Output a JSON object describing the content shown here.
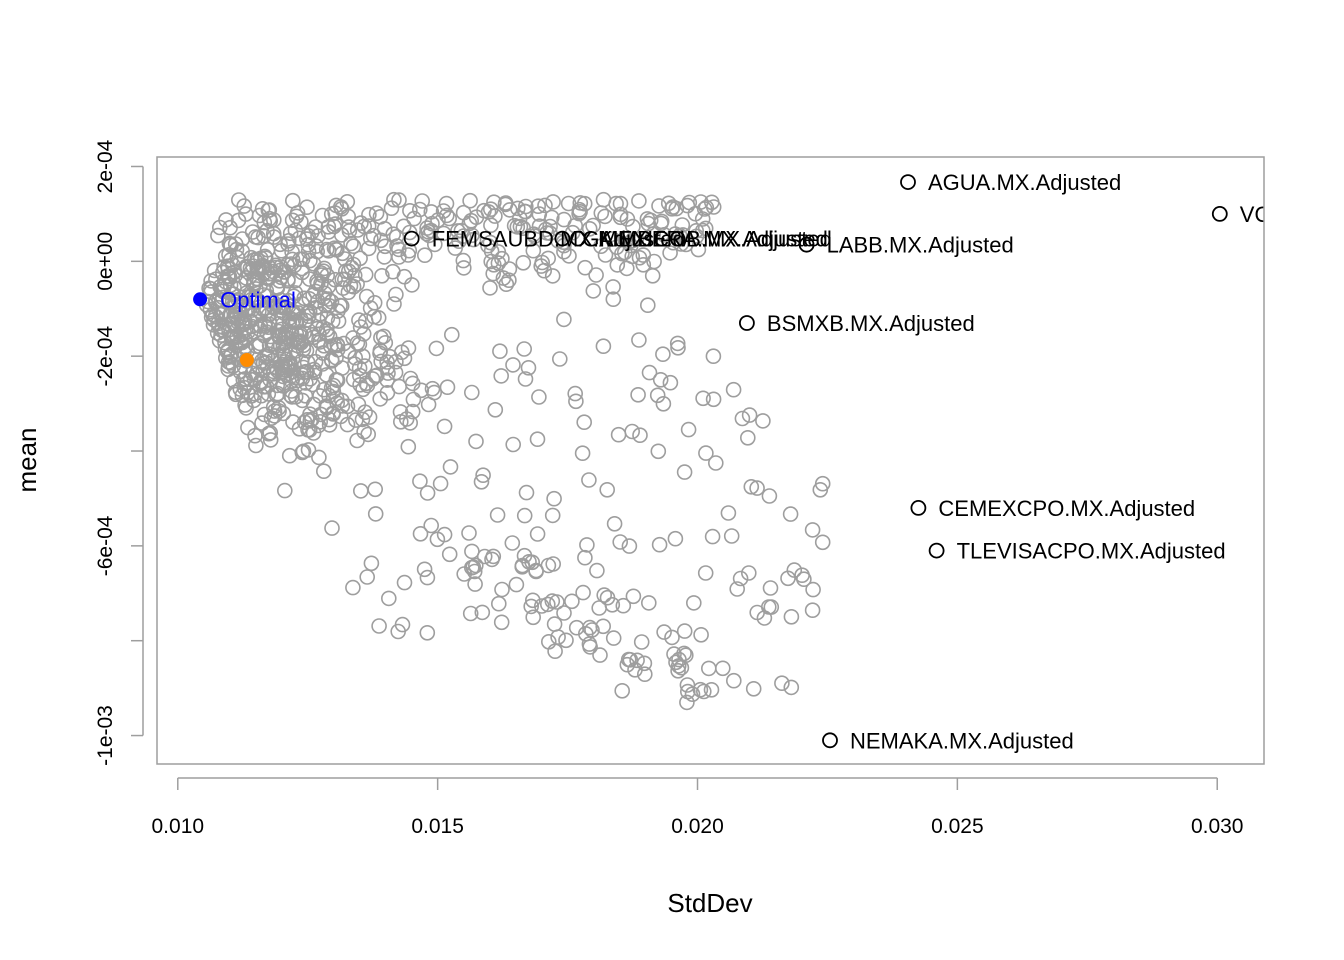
{
  "chart_data": {
    "type": "scatter",
    "xlabel": "StdDev",
    "ylabel": "mean",
    "xlim": [
      0.0096,
      0.0309
    ],
    "ylim": [
      -0.00106,
      0.00022
    ],
    "x_ticks": [
      {
        "value": 0.01,
        "label": "0.010"
      },
      {
        "value": 0.015,
        "label": "0.015"
      },
      {
        "value": 0.02,
        "label": "0.020"
      },
      {
        "value": 0.025,
        "label": "0.025"
      },
      {
        "value": 0.03,
        "label": "0.030"
      }
    ],
    "y_ticks": [
      {
        "value": 0.0002,
        "label": "2e-04"
      },
      {
        "value": 0.0,
        "label": "0e+00"
      },
      {
        "value": -0.0002,
        "label": "-2e-04"
      },
      {
        "value": -0.0004,
        "label": ""
      },
      {
        "value": -0.0006,
        "label": "-6e-04"
      },
      {
        "value": -0.0008,
        "label": ""
      },
      {
        "value": -0.001,
        "label": "-1e-03"
      }
    ],
    "grid": false,
    "colors": {
      "cloud": "#9e9e9e",
      "asset": "#000000",
      "optimal": "#0000ff",
      "highlight": "#ff8c00",
      "frame": "#9e9e9e"
    },
    "assets": [
      {
        "name": "AGUA.MX.Adjusted",
        "x": 0.02405,
        "y": 0.000167
      },
      {
        "name": "VO",
        "x": 0.03005,
        "y": 0.0001
      },
      {
        "name": "FEMSAUBD.MX.Adjusted",
        "x": 0.0145,
        "y": 4.8e-05
      },
      {
        "name": "GMEXICOB.MX.Adjusted",
        "x": 0.0174,
        "y": 4.8e-05
      },
      {
        "name": "KIMBERA.MX.Adjusted",
        "x": 0.0177,
        "y": 4.8e-05
      },
      {
        "name": "LABB.MX.Adjusted",
        "x": 0.0221,
        "y": 3.5e-05
      },
      {
        "name": "BSMXB.MX.Adjusted",
        "x": 0.02095,
        "y": -0.00013
      },
      {
        "name": "CEMEXCPO.MX.Adjusted",
        "x": 0.02425,
        "y": -0.00052
      },
      {
        "name": "TLEVISACPO.MX.Adjusted",
        "x": 0.0246,
        "y": -0.00061
      },
      {
        "name": "NEMAKA.MX.Adjusted",
        "x": 0.02255,
        "y": -0.00101
      }
    ],
    "optimal": {
      "name": "Optimal",
      "x": 0.01043,
      "y": -8e-05
    },
    "highlight": {
      "x": 0.01133,
      "y": -0.000208
    },
    "portfolio_cloud": {
      "count": 1050,
      "description": "random portfolios",
      "seed": 7,
      "shape": {
        "frontier_x_top": 0.0109,
        "frontier_x_mid": 0.0103,
        "frontier_x_bottom": 0.0125,
        "core_x": 0.0135,
        "core_y": -0.00016,
        "y_top": 0.00014,
        "y_bottom": -0.00094,
        "x_max": 0.0229
      }
    }
  }
}
